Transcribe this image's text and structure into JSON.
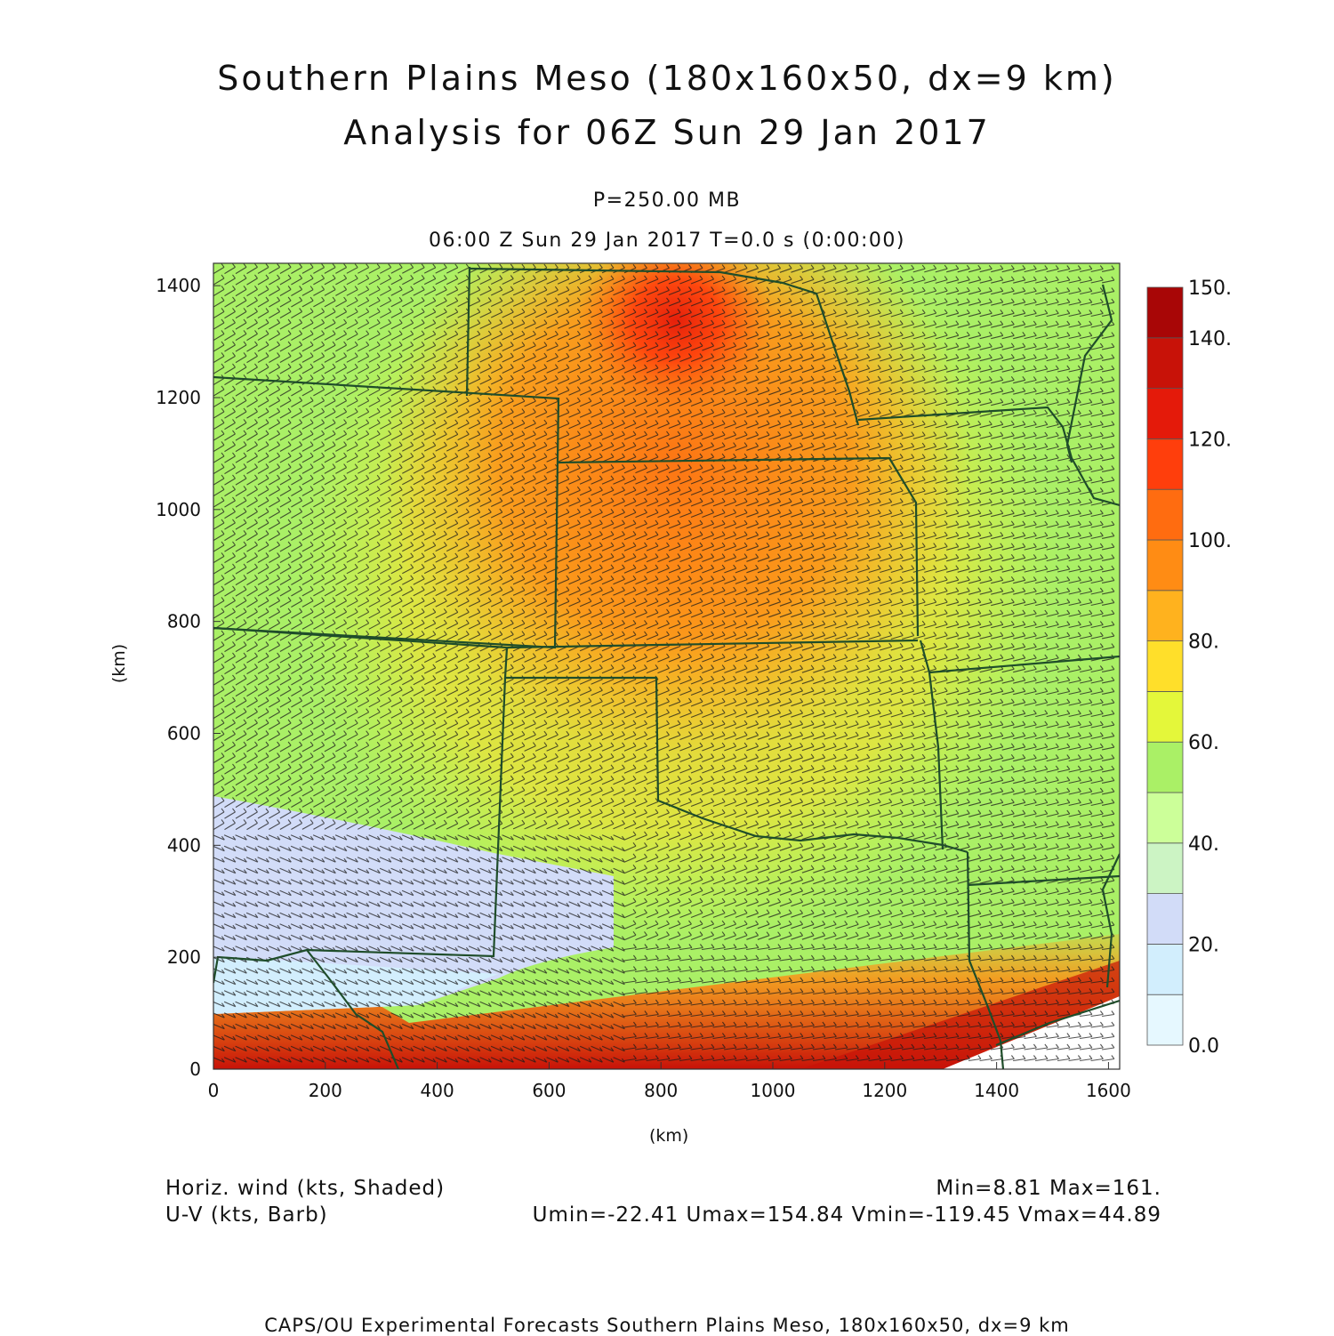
{
  "header": {
    "title_line1": "Southern Plains Meso (180x160x50, dx=9 km)",
    "title_line2": "Analysis for 06Z Sun 29 Jan 2017",
    "level": "P=250.00 MB",
    "valid_time": "06:00 Z Sun 29 Jan 2017    T=0.0 s (0:00:00)"
  },
  "axes": {
    "x_label": "(km)",
    "y_label": "(km)",
    "x_ticks": [
      "0",
      "200",
      "400",
      "600",
      "800",
      "1000",
      "1200",
      "1400",
      "1600"
    ],
    "y_ticks": [
      "0",
      "200",
      "400",
      "600",
      "800",
      "1000",
      "1200",
      "1400"
    ],
    "x_range_km": [
      0,
      1620
    ],
    "y_range_km": [
      0,
      1440
    ]
  },
  "colorbar": {
    "labels": [
      "150.",
      "140.",
      "120.",
      "100.",
      "80.",
      "60.",
      "40.",
      "20.",
      "0.0"
    ],
    "levels": [
      0,
      10,
      20,
      30,
      40,
      50,
      60,
      70,
      80,
      90,
      100,
      110,
      120,
      130,
      140,
      150
    ],
    "colors": [
      "#e6f8ff",
      "#d2eefd",
      "#d2dcf8",
      "#ccf4c4",
      "#ccff99",
      "#aaf066",
      "#e4f73a",
      "#ffdf2a",
      "#ffb21e",
      "#ff8c14",
      "#ff6c10",
      "#ff3e0c",
      "#e41a0a",
      "#c81208",
      "#a80606"
    ]
  },
  "field_info": {
    "shaded_label": "Horiz. wind (kts, Shaded)",
    "barb_label": "U-V (kts, Barb)",
    "min_max": "Min=8.81 Max=161.",
    "uv_range": "Umin=-22.41 Umax=154.84 Vmin=-119.45 Vmax=44.89"
  },
  "footer": {
    "credit": "CAPS/OU Experimental Forecasts  Southern Plains Meso, 180x160x50, dx=9 km"
  },
  "map_style": {
    "boundary_color": "#1f4d2a",
    "barb_color": "#1c1c1c",
    "bad_data_color": "#ffffff"
  }
}
